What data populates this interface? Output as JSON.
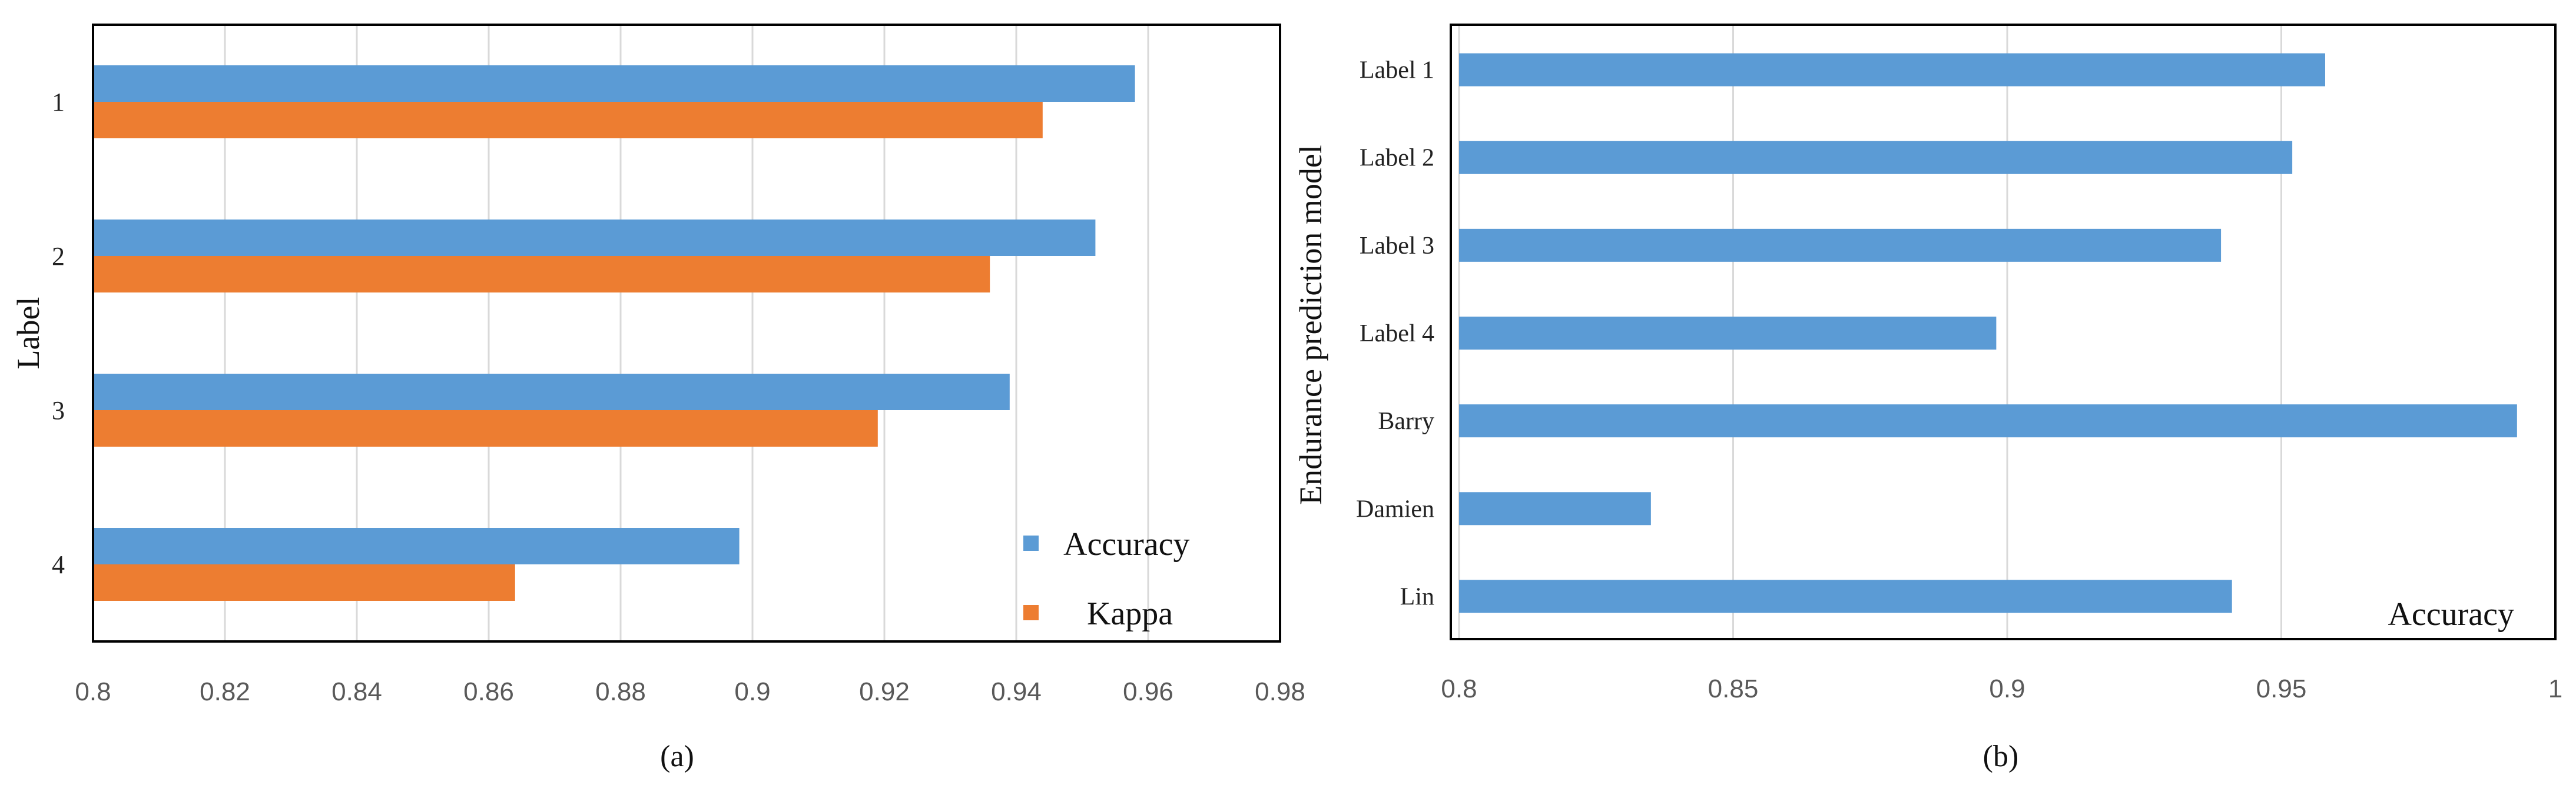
{
  "colors": {
    "accuracy": "#5B9BD5",
    "kappa": "#ED7D31",
    "grid": "#D9D9D9",
    "frame": "#000000"
  },
  "chart_data": [
    {
      "type": "bar",
      "orientation": "horizontal",
      "caption": "(a)",
      "ylabel": "Label",
      "xlabel": "",
      "categories": [
        "1",
        "2",
        "3",
        "4"
      ],
      "xlim": [
        0.8,
        0.98
      ],
      "xticks": [
        "0.8",
        "0.82",
        "0.84",
        "0.86",
        "0.88",
        "0.9",
        "0.92",
        "0.94",
        "0.96",
        "0.98"
      ],
      "legend_position": "bottom-right",
      "series": [
        {
          "name": "Accuracy",
          "values": [
            0.958,
            0.952,
            0.939,
            0.898
          ]
        },
        {
          "name": "Kappa",
          "values": [
            0.944,
            0.936,
            0.919,
            0.864
          ]
        }
      ]
    },
    {
      "type": "bar",
      "orientation": "horizontal",
      "caption": "(b)",
      "ylabel": "Endurance prediction model",
      "xlabel": "",
      "corner_label": "Accuracy",
      "categories": [
        "Label 1",
        "Label 2",
        "Label 3",
        "Label 4",
        "Barry",
        "Damien",
        "Lin"
      ],
      "xlim": [
        0.8,
        1.0
      ],
      "xticks": [
        "0.8",
        "0.85",
        "0.9",
        "0.95",
        "1"
      ],
      "series": [
        {
          "name": "Accuracy",
          "values": [
            0.958,
            0.952,
            0.939,
            0.898,
            0.993,
            0.835,
            0.941
          ]
        }
      ]
    }
  ]
}
